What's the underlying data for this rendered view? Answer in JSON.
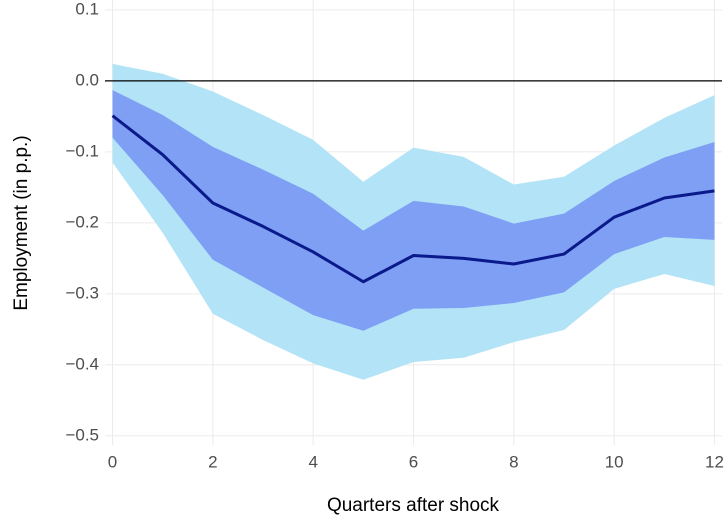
{
  "chart_data": {
    "type": "line",
    "xlabel": "Quarters after shock",
    "ylabel": "Employment (in p.p.)",
    "x": [
      0,
      1,
      2,
      3,
      4,
      5,
      6,
      7,
      8,
      9,
      10,
      11,
      12
    ],
    "values": [
      -0.049,
      -0.104,
      -0.172,
      -0.205,
      -0.241,
      -0.283,
      -0.246,
      -0.25,
      -0.258,
      -0.244,
      -0.192,
      -0.165,
      -0.155
    ],
    "color": "#0b1a8a",
    "bands": [
      {
        "color": "#b3e3f6",
        "upper": [
          0.024,
          0.01,
          -0.015,
          -0.048,
          -0.083,
          -0.142,
          -0.094,
          -0.107,
          -0.146,
          -0.135,
          -0.091,
          -0.052,
          -0.02
        ],
        "lower": [
          -0.115,
          -0.214,
          -0.328,
          -0.365,
          -0.398,
          -0.421,
          -0.396,
          -0.39,
          -0.368,
          -0.351,
          -0.293,
          -0.272,
          -0.289
        ]
      },
      {
        "color": "#7f9ff4",
        "upper": [
          -0.013,
          -0.048,
          -0.093,
          -0.125,
          -0.159,
          -0.211,
          -0.169,
          -0.177,
          -0.201,
          -0.187,
          -0.141,
          -0.108,
          -0.086
        ],
        "lower": [
          -0.08,
          -0.161,
          -0.252,
          -0.291,
          -0.33,
          -0.352,
          -0.321,
          -0.32,
          -0.313,
          -0.298,
          -0.244,
          -0.22,
          -0.224
        ]
      }
    ],
    "hline": 0,
    "xlim": [
      -0.15,
      12.15
    ],
    "ylim": [
      -0.513,
      0.114
    ],
    "xticks": [
      0,
      2,
      4,
      6,
      8,
      10,
      12
    ],
    "yticks": [
      {
        "value": -0.5,
        "label": "−0.5"
      },
      {
        "value": -0.4,
        "label": "−0.4"
      },
      {
        "value": -0.3,
        "label": "−0.3"
      },
      {
        "value": -0.2,
        "label": "−0.2"
      },
      {
        "value": -0.1,
        "label": "−0.1"
      },
      {
        "value": 0,
        "label": "0.0"
      },
      0.1
    ],
    "grid": true
  }
}
